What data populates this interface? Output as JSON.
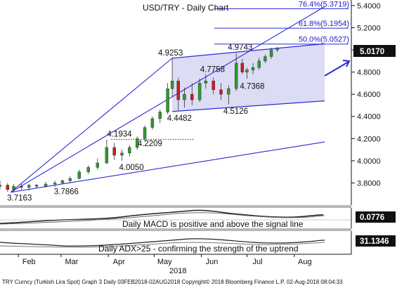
{
  "chart_data": {
    "type": "candlestick",
    "title": "USD/TRY  - Daily Chart",
    "ylim": [
      3.6,
      5.45
    ],
    "y_ticks": [
      3.8,
      4.0,
      4.2,
      4.4,
      4.6,
      4.8,
      5.0,
      5.2,
      5.4
    ],
    "y_tick_labels": [
      "3.8000",
      "4.0000",
      "4.2000",
      "4.4000",
      "4.6000",
      "4.8000",
      "5.0000",
      "5.2000",
      "5.4000"
    ],
    "x_labels": [
      "Feb",
      "Mar",
      "Apr",
      "May",
      "Jun",
      "Jul",
      "Aug"
    ],
    "x_label_days": [
      19,
      47,
      78,
      108,
      139,
      169,
      200
    ],
    "year_label": "2018",
    "x_range_days": [
      0,
      213
    ],
    "last_value": "5.0170",
    "annotations": [
      {
        "text": "3.7163",
        "day": 7,
        "value": 3.7163
      },
      {
        "text": "3.7866",
        "day": 40,
        "value": 3.7866
      },
      {
        "text": "4.1934",
        "day": 73,
        "value": 4.1934
      },
      {
        "text": "4.0050",
        "day": 80,
        "value": 4.005
      },
      {
        "text": "4.2209",
        "day": 93,
        "value": 4.2209
      },
      {
        "text": "4.9253",
        "day": 113,
        "value": 4.9253
      },
      {
        "text": "4.4482",
        "day": 117,
        "value": 4.4482
      },
      {
        "text": "4.7758",
        "day": 135,
        "value": 4.7758
      },
      {
        "text": "4.5126",
        "day": 153,
        "value": 4.5126
      },
      {
        "text": "4.9743",
        "day": 155,
        "value": 4.9743
      },
      {
        "text": "4.7368",
        "day": 162,
        "value": 4.7368
      }
    ],
    "fibonacci": [
      {
        "label": "50.0%(5.0527)",
        "value": 5.0527
      },
      {
        "label": "61.8%(5.1954)",
        "value": 5.1954
      },
      {
        "label": "76.4%(5.3719)",
        "value": 5.3719
      }
    ],
    "channel": {
      "upper": [
        {
          "day": 113,
          "value": 4.925
        },
        {
          "day": 182,
          "value": 5.015
        }
      ],
      "lower": [
        {
          "day": 117,
          "value": 4.448
        },
        {
          "day": 213,
          "value": 4.54
        }
      ]
    },
    "trendlines": [
      {
        "from": {
          "day": 7,
          "value": 3.716
        },
        "to": {
          "day": 213,
          "value": 5.39
        }
      },
      {
        "from": {
          "day": 7,
          "value": 3.716
        },
        "to": {
          "day": 113,
          "value": 4.925
        }
      },
      {
        "from": {
          "day": 7,
          "value": 3.716
        },
        "to": {
          "day": 213,
          "value": 4.17
        }
      }
    ],
    "support_dotted": {
      "from_day": 73,
      "to_day": 127,
      "value": 4.1934
    },
    "candles_weekly_approx": [
      {
        "day": 0,
        "open": 3.77,
        "high": 3.82,
        "low": 3.74,
        "close": 3.78
      },
      {
        "day": 5,
        "open": 3.78,
        "high": 3.8,
        "low": 3.72,
        "close": 3.74
      },
      {
        "day": 9,
        "open": 3.74,
        "high": 3.79,
        "low": 3.72,
        "close": 3.77
      },
      {
        "day": 14,
        "open": 3.77,
        "high": 3.8,
        "low": 3.74,
        "close": 3.76
      },
      {
        "day": 19,
        "open": 3.76,
        "high": 3.79,
        "low": 3.73,
        "close": 3.78
      },
      {
        "day": 24,
        "open": 3.78,
        "high": 3.79,
        "low": 3.75,
        "close": 3.77
      },
      {
        "day": 30,
        "open": 3.77,
        "high": 3.81,
        "low": 3.76,
        "close": 3.79
      },
      {
        "day": 36,
        "open": 3.79,
        "high": 3.82,
        "low": 3.76,
        "close": 3.8
      },
      {
        "day": 41,
        "open": 3.8,
        "high": 3.83,
        "low": 3.79,
        "close": 3.82
      },
      {
        "day": 46,
        "open": 3.82,
        "high": 3.86,
        "low": 3.8,
        "close": 3.84
      },
      {
        "day": 52,
        "open": 3.84,
        "high": 3.92,
        "low": 3.83,
        "close": 3.9
      },
      {
        "day": 58,
        "open": 3.9,
        "high": 3.96,
        "low": 3.88,
        "close": 3.94
      },
      {
        "day": 64,
        "open": 3.94,
        "high": 4.02,
        "low": 3.92,
        "close": 3.98
      },
      {
        "day": 70,
        "open": 3.98,
        "high": 4.19,
        "low": 3.97,
        "close": 4.12
      },
      {
        "day": 75,
        "open": 4.12,
        "high": 4.16,
        "low": 4.01,
        "close": 4.05
      },
      {
        "day": 80,
        "open": 4.05,
        "high": 4.1,
        "low": 4.0,
        "close": 4.07
      },
      {
        "day": 85,
        "open": 4.07,
        "high": 4.14,
        "low": 4.04,
        "close": 4.12
      },
      {
        "day": 90,
        "open": 4.12,
        "high": 4.22,
        "low": 4.1,
        "close": 4.2
      },
      {
        "day": 95,
        "open": 4.2,
        "high": 4.32,
        "low": 4.18,
        "close": 4.3
      },
      {
        "day": 100,
        "open": 4.3,
        "high": 4.4,
        "low": 4.28,
        "close": 4.38
      },
      {
        "day": 105,
        "open": 4.38,
        "high": 4.46,
        "low": 4.34,
        "close": 4.44
      },
      {
        "day": 110,
        "open": 4.44,
        "high": 4.7,
        "low": 4.42,
        "close": 4.65
      },
      {
        "day": 113,
        "open": 4.65,
        "high": 4.93,
        "low": 4.58,
        "close": 4.72
      },
      {
        "day": 117,
        "open": 4.72,
        "high": 4.75,
        "low": 4.45,
        "close": 4.55
      },
      {
        "day": 121,
        "open": 4.55,
        "high": 4.66,
        "low": 4.48,
        "close": 4.6
      },
      {
        "day": 126,
        "open": 4.6,
        "high": 4.7,
        "low": 4.5,
        "close": 4.55
      },
      {
        "day": 131,
        "open": 4.55,
        "high": 4.74,
        "low": 4.53,
        "close": 4.7
      },
      {
        "day": 135,
        "open": 4.7,
        "high": 4.78,
        "low": 4.65,
        "close": 4.72
      },
      {
        "day": 140,
        "open": 4.72,
        "high": 4.75,
        "low": 4.6,
        "close": 4.64
      },
      {
        "day": 145,
        "open": 4.64,
        "high": 4.7,
        "low": 4.55,
        "close": 4.6
      },
      {
        "day": 150,
        "open": 4.6,
        "high": 4.68,
        "low": 4.51,
        "close": 4.65
      },
      {
        "day": 155,
        "open": 4.65,
        "high": 4.97,
        "low": 4.63,
        "close": 4.88
      },
      {
        "day": 159,
        "open": 4.88,
        "high": 4.92,
        "low": 4.78,
        "close": 4.8
      },
      {
        "day": 162,
        "open": 4.8,
        "high": 4.84,
        "low": 4.74,
        "close": 4.82
      },
      {
        "day": 166,
        "open": 4.82,
        "high": 4.88,
        "low": 4.78,
        "close": 4.84
      },
      {
        "day": 170,
        "open": 4.84,
        "high": 4.93,
        "low": 4.82,
        "close": 4.9
      },
      {
        "day": 174,
        "open": 4.9,
        "high": 4.96,
        "low": 4.88,
        "close": 4.94
      },
      {
        "day": 178,
        "open": 4.94,
        "high": 5.02,
        "low": 4.92,
        "close": 5.0
      },
      {
        "day": 182,
        "open": 5.0,
        "high": 5.03,
        "low": 4.98,
        "close": 5.017
      }
    ],
    "sub_panels": [
      {
        "label": "0.0776",
        "note": "Daily MACD is positive and above the signal line"
      },
      {
        "label": "31.1346",
        "note": "Daily ADX>25 - confirming the strength of the uptrend"
      }
    ]
  },
  "footer": {
    "text": "TRY Curncy (Turkish Lira Spot) Graph 3  Daily 03FEB2018-02AUG2018  Copyright© 2018 Bloomberg Finance L.P.  02-Aug-2018 08:04:33"
  },
  "colors": {
    "line": "#2a2ad8",
    "channel_fill": "#dcdcf5",
    "candle_up": "#2e9a2e",
    "candle_down": "#c81e1e",
    "last_value_bg": "#111111"
  }
}
